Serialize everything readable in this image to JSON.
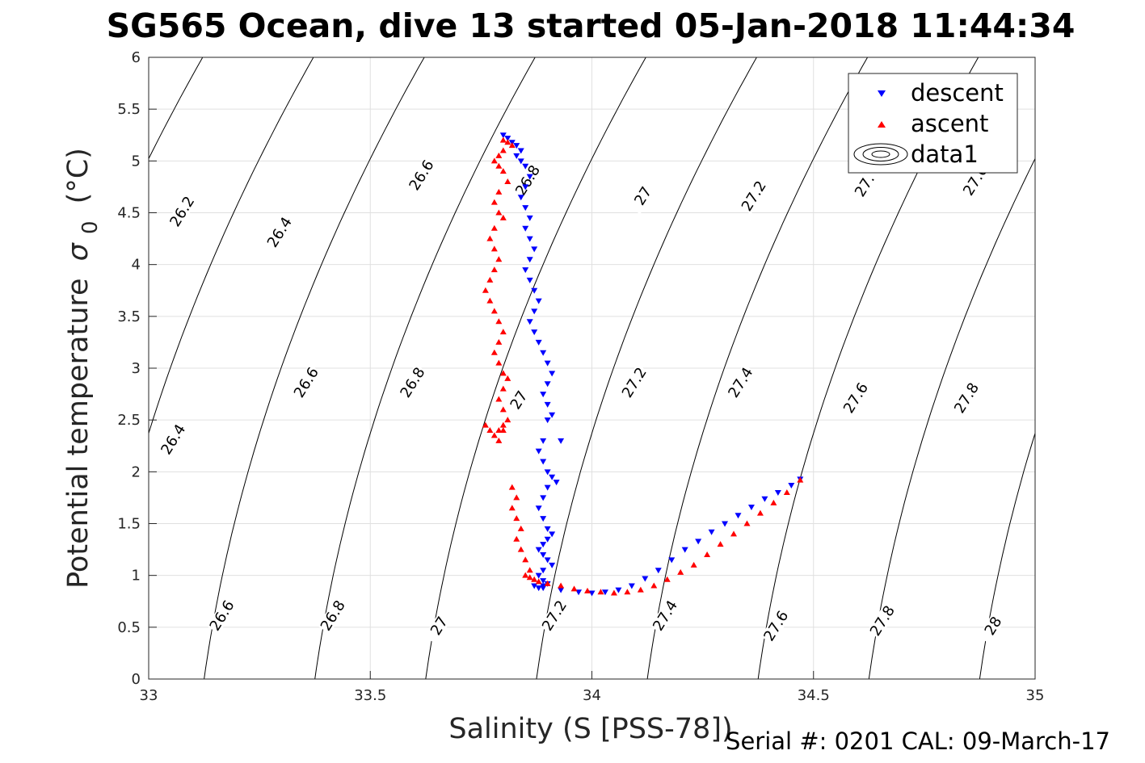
{
  "chart_data": {
    "type": "scatter",
    "title": "SG565 Ocean, dive 13 started 05-Jan-2018 11:44:34",
    "xlabel": "Salinity (S [PSS-78])",
    "ylabel": "Potential temperature",
    "ylabel_sigma": "σ",
    "ylabel_sub": "0",
    "ylabel_unit": "(°C)",
    "footer": "Serial #: 0201  CAL: 09-March-17",
    "xlim": [
      33,
      35
    ],
    "ylim": [
      0,
      6
    ],
    "x_ticks": [
      "33",
      "33.5",
      "34",
      "34.5",
      "35"
    ],
    "y_ticks": [
      "0",
      "0.5",
      "1",
      "1.5",
      "2",
      "2.5",
      "3",
      "3.5",
      "4",
      "4.5",
      "5",
      "5.5",
      "6"
    ],
    "grid": true,
    "legend": {
      "location": "top-right",
      "entries": [
        "descent",
        "ascent",
        "data1"
      ]
    },
    "contours": [
      {
        "sigma": 26.0,
        "label": ""
      },
      {
        "sigma": 26.2,
        "label": "26.2"
      },
      {
        "sigma": 26.4,
        "label": "26.4"
      },
      {
        "sigma": 26.6,
        "label": "26.6"
      },
      {
        "sigma": 26.8,
        "label": "26.8"
      },
      {
        "sigma": 27.0,
        "label": "27"
      },
      {
        "sigma": 27.2,
        "label": "27.2"
      },
      {
        "sigma": 27.4,
        "label": "27.4"
      },
      {
        "sigma": 27.6,
        "label": "27.6"
      },
      {
        "sigma": 27.8,
        "label": "27.8"
      },
      {
        "sigma": 28.0,
        "label": "28"
      },
      {
        "sigma": 28.2,
        "label": ""
      }
    ],
    "contour_labels": [
      {
        "text": "26.2",
        "s": 33.08,
        "t": 4.5
      },
      {
        "text": "26.4",
        "s": 33.3,
        "t": 4.3
      },
      {
        "text": "26.6",
        "s": 33.62,
        "t": 4.85
      },
      {
        "text": "26.8",
        "s": 33.86,
        "t": 4.8
      },
      {
        "text": "27",
        "s": 34.12,
        "t": 4.65
      },
      {
        "text": "27.2",
        "s": 34.37,
        "t": 4.65
      },
      {
        "text": "27.",
        "s": 34.62,
        "t": 4.75
      },
      {
        "text": "27.6",
        "s": 34.87,
        "t": 4.8
      },
      {
        "text": "26.4",
        "s": 33.06,
        "t": 2.3
      },
      {
        "text": "26.6",
        "s": 33.36,
        "t": 2.85
      },
      {
        "text": "26.8",
        "s": 33.6,
        "t": 2.85
      },
      {
        "text": "27",
        "s": 33.84,
        "t": 2.68
      },
      {
        "text": "27.2",
        "s": 34.1,
        "t": 2.85
      },
      {
        "text": "27.4",
        "s": 34.34,
        "t": 2.85
      },
      {
        "text": "27.6",
        "s": 34.6,
        "t": 2.7
      },
      {
        "text": "27.8",
        "s": 34.85,
        "t": 2.7
      },
      {
        "text": "26.6",
        "s": 33.17,
        "t": 0.6
      },
      {
        "text": "26.8",
        "s": 33.42,
        "t": 0.6
      },
      {
        "text": "27",
        "s": 33.66,
        "t": 0.5
      },
      {
        "text": "27.2",
        "s": 33.92,
        "t": 0.6
      },
      {
        "text": "27.4",
        "s": 34.17,
        "t": 0.6
      },
      {
        "text": "27.6",
        "s": 34.42,
        "t": 0.5
      },
      {
        "text": "27.8",
        "s": 34.66,
        "t": 0.55
      },
      {
        "text": "28",
        "s": 34.91,
        "t": 0.5
      }
    ],
    "series": [
      {
        "name": "descent",
        "color": "#0000ff",
        "marker": "triangle-down",
        "x": [
          33.8,
          33.81,
          33.82,
          33.83,
          33.84,
          33.83,
          33.84,
          33.85,
          33.86,
          33.85,
          33.84,
          33.85,
          33.86,
          33.85,
          33.86,
          33.87,
          33.86,
          33.85,
          33.86,
          33.87,
          33.88,
          33.87,
          33.86,
          33.87,
          33.88,
          33.89,
          33.9,
          33.91,
          33.9,
          33.89,
          33.9,
          33.91,
          33.9,
          33.89,
          33.88,
          33.89,
          33.9,
          33.91,
          33.92,
          33.93,
          33.9,
          33.89,
          33.88,
          33.89,
          33.9,
          33.91,
          33.9,
          33.89,
          33.88,
          33.89,
          33.9,
          33.91,
          33.89,
          33.88,
          33.89,
          33.9,
          33.89,
          33.88,
          33.87,
          33.89,
          33.93,
          33.97,
          34.0,
          34.03,
          34.06,
          34.09,
          34.12,
          34.15,
          34.18,
          34.21,
          34.24,
          34.27,
          34.3,
          34.33,
          34.36,
          34.39,
          34.42,
          34.45,
          34.47
        ],
        "y": [
          5.25,
          5.22,
          5.18,
          5.15,
          5.1,
          5.05,
          5.0,
          4.95,
          4.85,
          4.75,
          4.65,
          4.55,
          4.45,
          4.35,
          4.25,
          4.15,
          4.05,
          3.95,
          3.85,
          3.75,
          3.65,
          3.55,
          3.45,
          3.35,
          3.25,
          3.15,
          3.05,
          2.95,
          2.85,
          2.75,
          2.65,
          2.55,
          2.5,
          2.3,
          2.2,
          2.1,
          2.0,
          1.95,
          1.9,
          2.3,
          1.85,
          1.75,
          1.65,
          1.55,
          1.45,
          1.4,
          1.35,
          1.3,
          1.25,
          1.2,
          1.15,
          1.1,
          1.05,
          1.0,
          0.95,
          0.92,
          0.9,
          0.88,
          0.9,
          0.88,
          0.86,
          0.84,
          0.83,
          0.84,
          0.86,
          0.9,
          0.97,
          1.05,
          1.15,
          1.25,
          1.33,
          1.42,
          1.5,
          1.58,
          1.66,
          1.74,
          1.8,
          1.87,
          1.93
        ]
      },
      {
        "name": "ascent",
        "color": "#ff0000",
        "marker": "triangle-up",
        "x": [
          33.8,
          33.81,
          33.82,
          33.8,
          33.79,
          33.78,
          33.79,
          33.8,
          33.81,
          33.79,
          33.78,
          33.79,
          33.8,
          33.78,
          33.77,
          33.78,
          33.79,
          33.78,
          33.77,
          33.76,
          33.77,
          33.78,
          33.79,
          33.8,
          33.79,
          33.78,
          33.79,
          33.8,
          33.81,
          33.8,
          33.79,
          33.8,
          33.81,
          33.8,
          33.79,
          33.78,
          33.77,
          33.76,
          33.79,
          33.8,
          33.82,
          33.83,
          33.82,
          33.83,
          33.84,
          33.83,
          33.84,
          33.85,
          33.86,
          33.85,
          33.86,
          33.87,
          33.88,
          33.9,
          33.93,
          33.96,
          33.99,
          34.02,
          34.05,
          34.08,
          34.11,
          34.14,
          34.17,
          34.2,
          34.23,
          34.26,
          34.29,
          34.32,
          34.35,
          34.38,
          34.41,
          34.44,
          34.47
        ],
        "y": [
          5.2,
          5.18,
          5.15,
          5.1,
          5.05,
          5.0,
          4.95,
          4.9,
          4.8,
          4.7,
          4.6,
          4.5,
          4.45,
          4.35,
          4.25,
          4.15,
          4.05,
          3.95,
          3.85,
          3.75,
          3.65,
          3.55,
          3.45,
          3.35,
          3.25,
          3.15,
          3.05,
          2.95,
          2.9,
          2.8,
          2.7,
          2.6,
          2.5,
          2.45,
          2.4,
          2.35,
          2.4,
          2.45,
          2.3,
          2.4,
          1.85,
          1.75,
          1.65,
          1.55,
          1.45,
          1.35,
          1.25,
          1.15,
          1.05,
          1.0,
          0.98,
          0.96,
          0.94,
          0.92,
          0.9,
          0.87,
          0.85,
          0.84,
          0.83,
          0.84,
          0.86,
          0.9,
          0.96,
          1.03,
          1.1,
          1.2,
          1.3,
          1.4,
          1.5,
          1.6,
          1.7,
          1.8,
          1.92
        ]
      }
    ]
  }
}
